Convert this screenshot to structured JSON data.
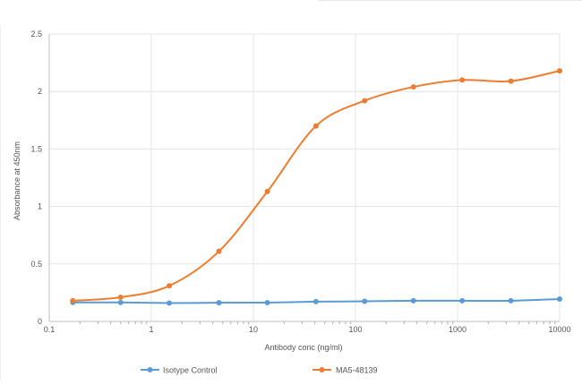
{
  "chart_data": {
    "type": "line",
    "xlabel": "Antibody conc (ng/ml)",
    "ylabel": "Absorbance at 450nm",
    "xscale": "log",
    "xlim": [
      0.1,
      10000
    ],
    "ylim": [
      0,
      2.5
    ],
    "x_ticks": [
      0.1,
      1,
      10,
      100,
      1000,
      10000
    ],
    "x_tick_labels": [
      "0.1",
      "1",
      "10",
      "100",
      "1000",
      "10000"
    ],
    "y_ticks": [
      0,
      0.5,
      1,
      1.5,
      2,
      2.5
    ],
    "y_tick_labels": [
      "0",
      "0.5",
      "1",
      "1.5",
      "2",
      "2.5"
    ],
    "grid": true,
    "legend_position": "bottom",
    "series": [
      {
        "name": "Isotype Control",
        "color": "#5b9bd5",
        "x": [
          0.17,
          0.5,
          1.5,
          4.6,
          13.7,
          41,
          123,
          370,
          1111,
          3333,
          10000
        ],
        "y": [
          0.165,
          0.165,
          0.16,
          0.163,
          0.164,
          0.172,
          0.175,
          0.18,
          0.18,
          0.18,
          0.195
        ]
      },
      {
        "name": "MA5-48139",
        "color": "#ed7d31",
        "x": [
          0.17,
          0.5,
          1.5,
          4.6,
          13.7,
          41,
          123,
          370,
          1111,
          3333,
          10000
        ],
        "y": [
          0.18,
          0.21,
          0.31,
          0.61,
          1.13,
          1.7,
          1.92,
          2.04,
          2.1,
          2.09,
          2.18
        ]
      }
    ]
  }
}
